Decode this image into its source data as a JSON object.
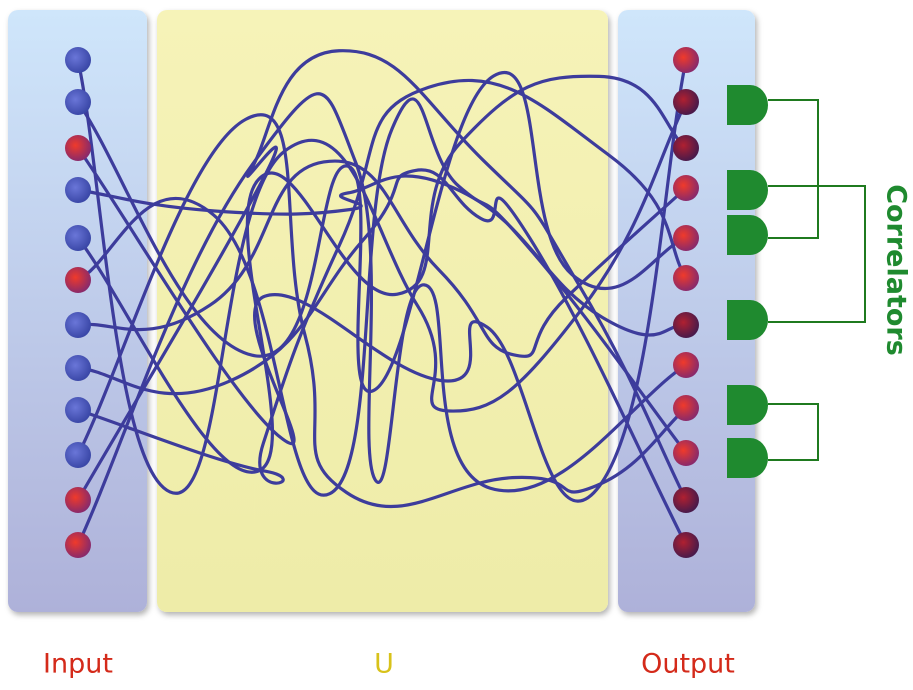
{
  "labels": {
    "input": "Input",
    "u": "U",
    "output": "Output",
    "correlators": "Correlators"
  }
}
